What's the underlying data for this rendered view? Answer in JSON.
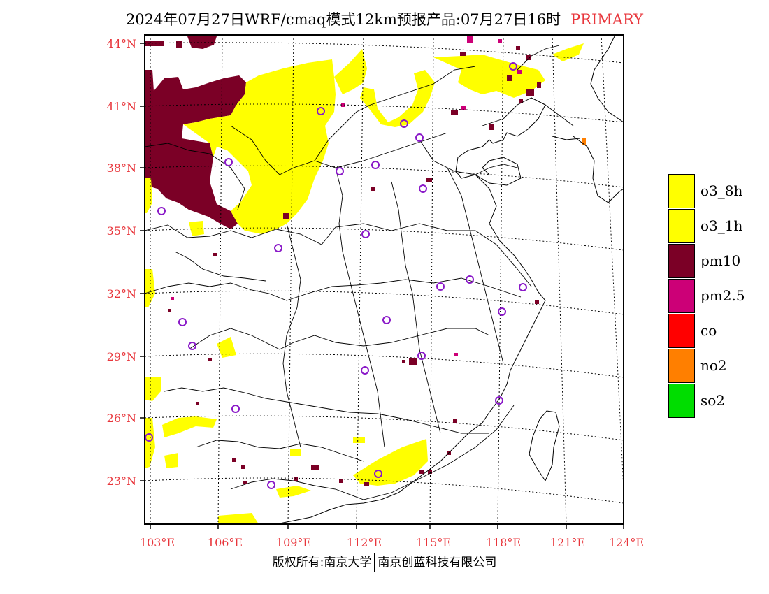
{
  "title": {
    "main": "2024年07月27日WRF/cmaq模式12km预报产品:07月27日16时",
    "tag": "PRIMARY"
  },
  "axes": {
    "lat_labels": [
      "44°N",
      "41°N",
      "38°N",
      "35°N",
      "32°N",
      "29°N",
      "26°N",
      "23°N"
    ],
    "lon_labels": [
      "103°E",
      "106°E",
      "109°E",
      "112°E",
      "115°E",
      "118°E",
      "121°E",
      "124°E"
    ],
    "label_color": "#e8353b"
  },
  "legend": {
    "items": [
      {
        "label": "o3_8h",
        "color": "#ffff00"
      },
      {
        "label": "o3_1h",
        "color": "#ffff00"
      },
      {
        "label": "pm10",
        "color": "#7b0026"
      },
      {
        "label": "pm2.5",
        "color": "#cc0077"
      },
      {
        "label": "co",
        "color": "#ff0000"
      },
      {
        "label": "no2",
        "color": "#ff7f00"
      },
      {
        "label": "so2",
        "color": "#00dd00"
      }
    ]
  },
  "footer": {
    "left": "版权所有:南京大学",
    "right": "南京创蓝科技有限公司"
  }
}
